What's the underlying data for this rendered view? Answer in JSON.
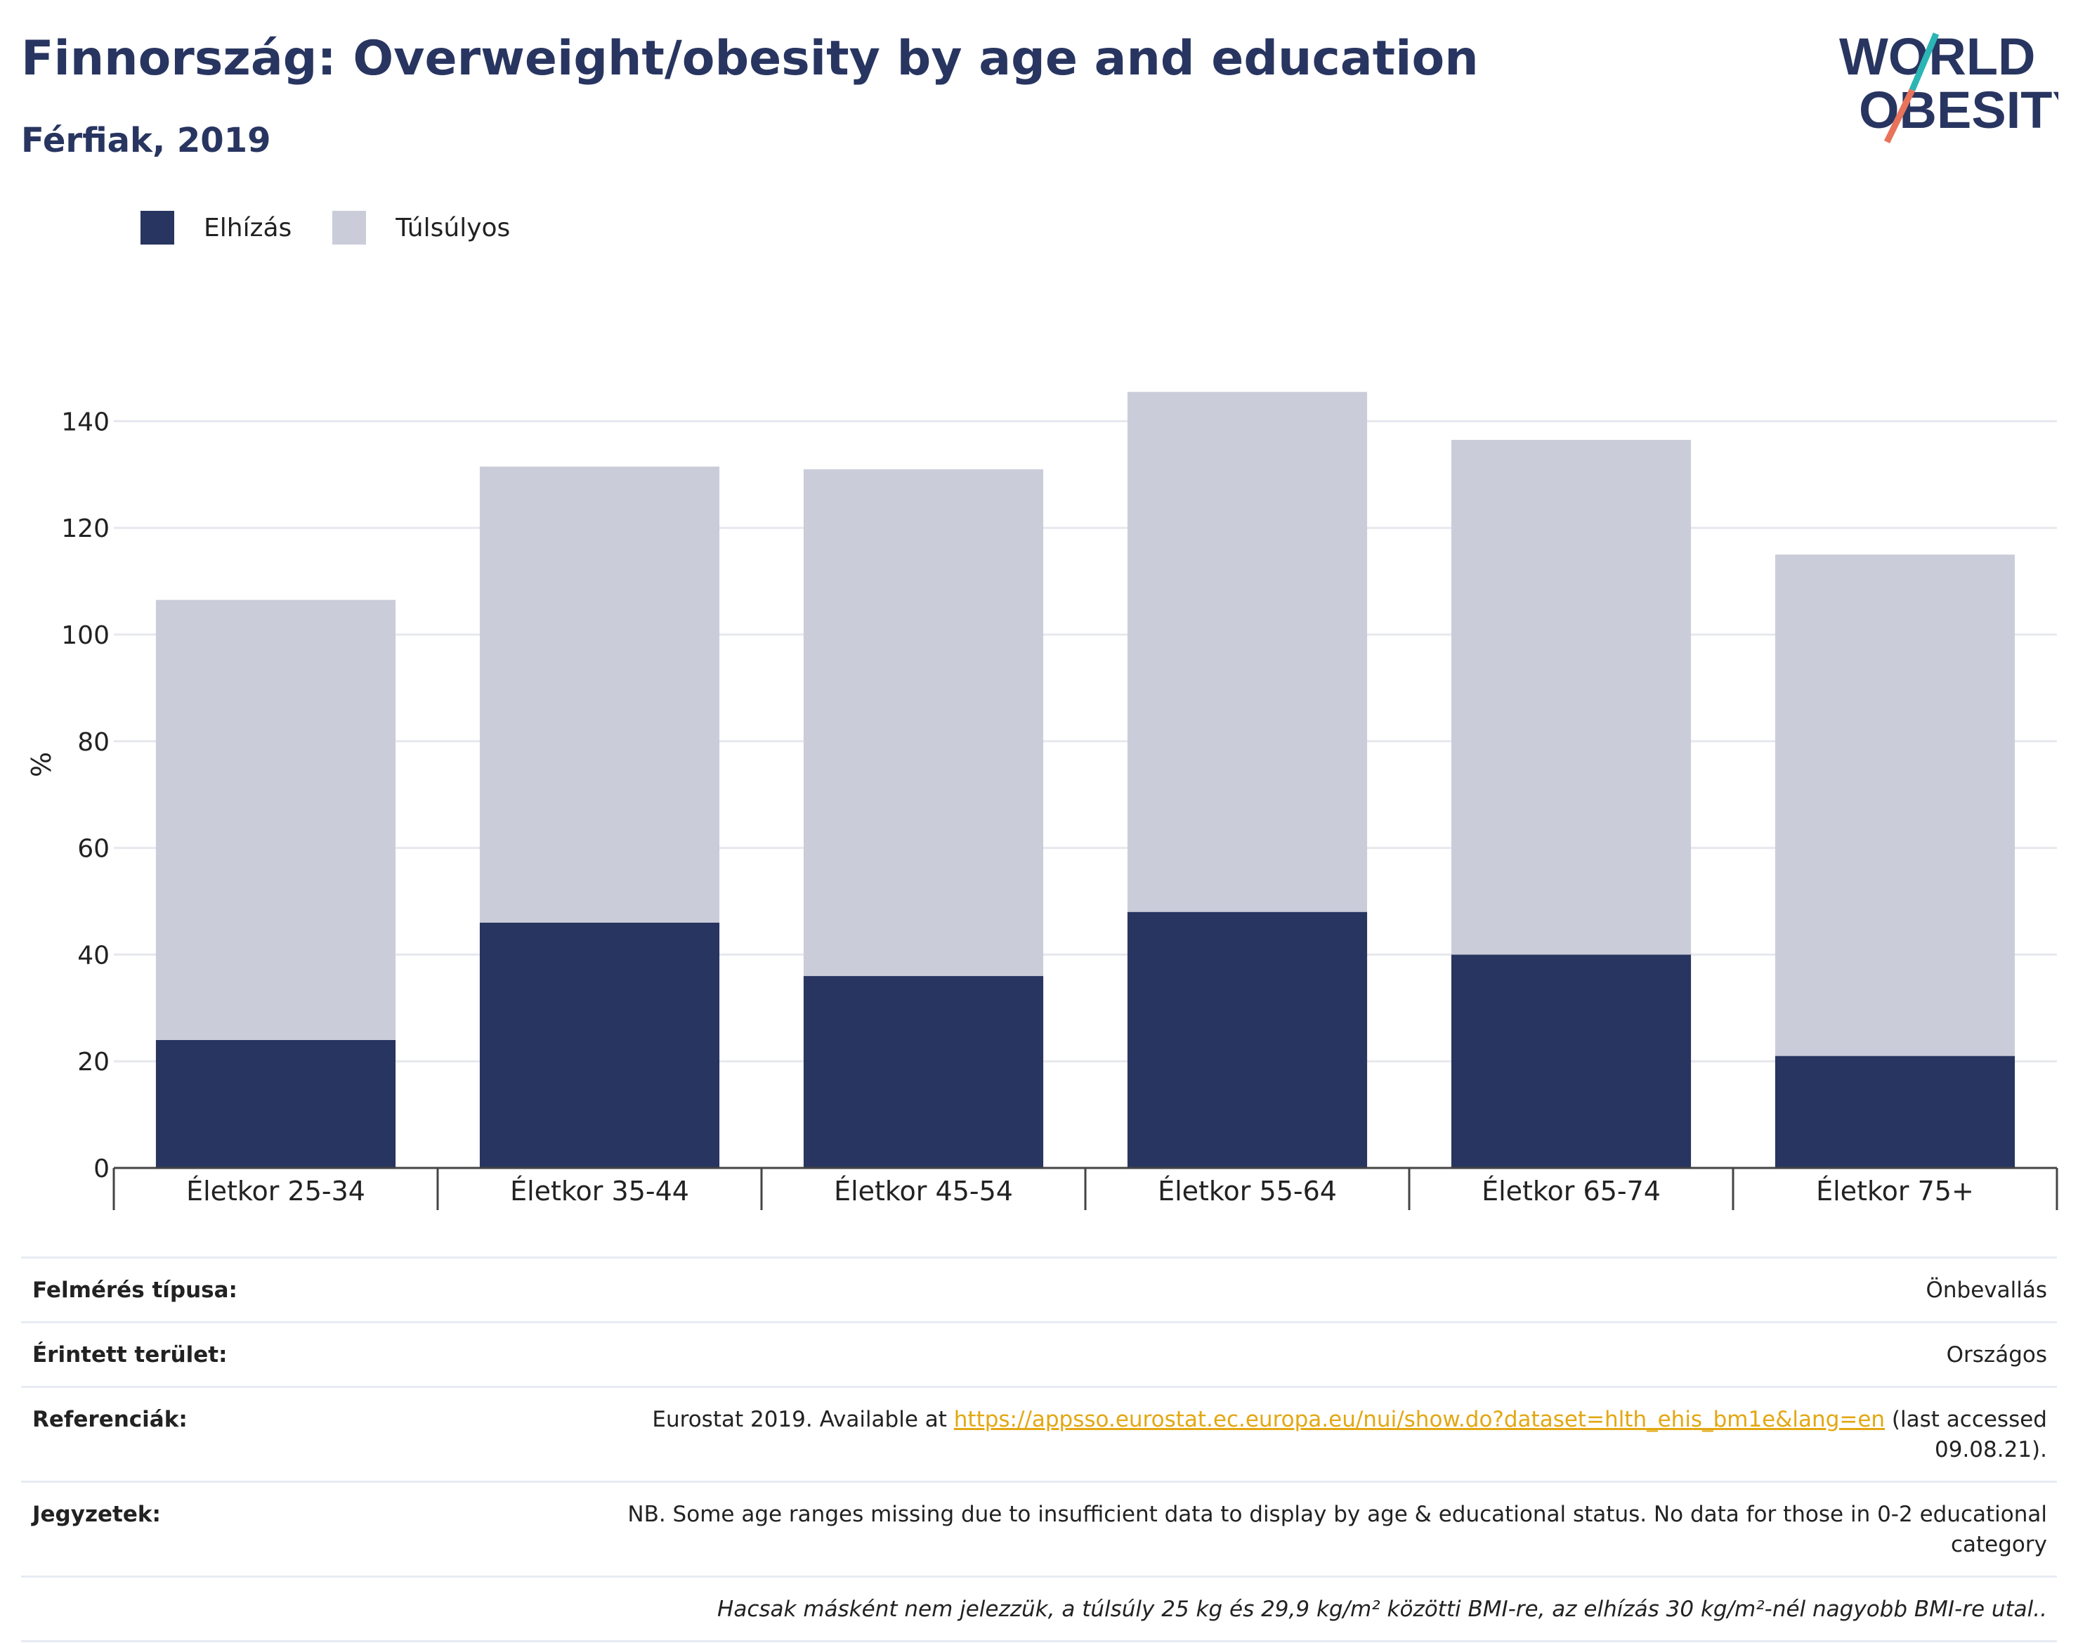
{
  "title": "Finnország: Overweight/obesity by age and education",
  "subtitle": "Férfiak, 2019",
  "logo": {
    "line1": "WORLD",
    "line2": "OBESITY",
    "accent_colors": [
      "#2bb5b5",
      "#e8735a"
    ]
  },
  "colors": {
    "obese": "#283560",
    "overweight": "#cacdd9",
    "text_dark": "#283560",
    "link": "#e2a712"
  },
  "chart_data": {
    "type": "bar",
    "stacked": true,
    "categories": [
      "Életkor 25-34",
      "Életkor 35-44",
      "Életkor 45-54",
      "Életkor 55-64",
      "Életkor 65-74",
      "Életkor 75+"
    ],
    "series": [
      {
        "name": "Elhízás",
        "values": [
          24,
          46,
          36,
          48,
          40,
          21
        ]
      },
      {
        "name": "Túlsúlyos",
        "values": [
          82.5,
          85.5,
          95,
          97.5,
          96.5,
          94
        ]
      }
    ],
    "ylabel": "%",
    "ylim": [
      0,
      146
    ],
    "yticks": [
      0,
      20,
      40,
      60,
      80,
      100,
      120,
      140
    ],
    "grid": true,
    "legend_position": "top-left"
  },
  "meta": {
    "rows": [
      {
        "label": "Felmérés típusa:",
        "value": "Önbevallás"
      },
      {
        "label": "Érintett terület:",
        "value": "Országos"
      },
      {
        "label": "Referenciák:",
        "value_pre": "Eurostat 2019. Available at ",
        "link": "https://appsso.eurostat.ec.europa.eu/nui/show.do?dataset=hlth_ehis_bm1e&lang=en",
        "value_post": " (last accessed 09.08.21)."
      },
      {
        "label": "Jegyzetek:",
        "value": "NB. Some age ranges missing due to insufficient data to display by age & educational status. No data for those in 0-2 educational category"
      }
    ],
    "footnote": "Hacsak másként nem jelezzük, a túlsúly 25 kg és 29,9 kg/m² közötti BMI-re, az elhízás 30 kg/m²-nél nagyobb BMI-re utal.."
  }
}
